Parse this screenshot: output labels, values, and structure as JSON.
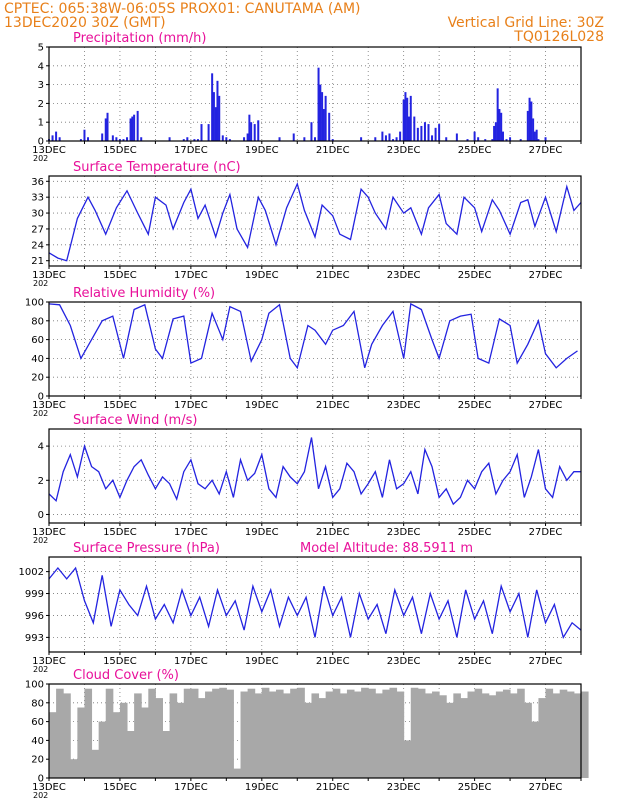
{
  "header": {
    "line1": "CPTEC:   065:38W-06:05S   PROX01: CANUTAMA (AM)",
    "line2_left": "13DEC2020 30Z (GMT)",
    "line2_right": "Vertical Grid Line: 30Z",
    "line3_right": "TQ0126L028"
  },
  "colors": {
    "header": "#e8801a",
    "title": "#e8109a",
    "series": "#2323e0",
    "cloud": "#a8a8a8"
  },
  "chart_data": [
    {
      "id": "precip",
      "type": "bar",
      "title": "Precipitation (mm/h)",
      "ylim": [
        0,
        5
      ],
      "yticks": [
        0,
        1,
        2,
        3,
        4,
        5
      ],
      "x_tick_labels": [
        "13DEC",
        "15DEC",
        "17DEC",
        "19DEC",
        "21DEC",
        "23DEC",
        "25DEC",
        "27DEC"
      ],
      "x_sub_label": "202",
      "days": [
        13.0,
        13.1,
        13.2,
        13.3,
        13.9,
        14.0,
        14.1,
        14.5,
        14.6,
        14.65,
        14.8,
        14.9,
        15.0,
        15.1,
        15.2,
        15.3,
        15.35,
        15.4,
        15.5,
        15.6,
        16.4,
        16.8,
        16.9,
        17.1,
        17.2,
        17.3,
        17.5,
        17.6,
        17.65,
        17.7,
        17.75,
        17.8,
        17.9,
        18.0,
        18.1,
        18.5,
        18.6,
        18.65,
        18.7,
        18.8,
        18.9,
        19.5,
        19.9,
        20.2,
        20.4,
        20.5,
        20.6,
        20.65,
        20.7,
        20.75,
        20.8,
        20.9,
        21.0,
        21.8,
        22.2,
        22.4,
        22.5,
        22.6,
        22.7,
        22.8,
        22.9,
        23.0,
        23.05,
        23.1,
        23.15,
        23.2,
        23.3,
        23.4,
        23.5,
        23.6,
        23.7,
        23.8,
        23.9,
        24.0,
        24.2,
        24.5,
        24.8,
        25.0,
        25.1,
        25.3,
        25.5,
        25.55,
        25.6,
        25.65,
        25.7,
        25.75,
        25.8,
        25.9,
        26.0,
        26.3,
        26.5,
        26.55,
        26.6,
        26.65,
        26.7,
        26.75,
        26.8,
        27.0
      ],
      "values": [
        0.1,
        0.3,
        0.5,
        0.2,
        0.1,
        0.6,
        0.2,
        0.4,
        1.2,
        1.5,
        0.3,
        0.2,
        0.1,
        0.1,
        0.2,
        1.2,
        1.3,
        1.4,
        1.6,
        0.2,
        0.2,
        0.1,
        0.2,
        0.1,
        0.1,
        0.9,
        0.9,
        3.6,
        2.6,
        1.8,
        3.2,
        2.4,
        0.3,
        0.2,
        0.1,
        0.2,
        0.4,
        1.4,
        1.0,
        0.9,
        1.1,
        0.2,
        0.4,
        0.2,
        1.0,
        0.2,
        3.9,
        3.0,
        2.6,
        1.7,
        2.4,
        1.5,
        0.1,
        0.2,
        0.2,
        0.5,
        0.3,
        0.4,
        0.1,
        0.2,
        0.5,
        2.2,
        2.6,
        2.3,
        1.3,
        2.4,
        1.3,
        0.7,
        0.8,
        1.0,
        0.9,
        0.3,
        0.7,
        0.9,
        0.2,
        0.4,
        0.1,
        0.5,
        0.2,
        0.1,
        0.1,
        0.8,
        1.0,
        2.8,
        1.7,
        1.5,
        0.5,
        0.1,
        0.2,
        0.1,
        1.6,
        2.3,
        2.1,
        1.2,
        0.5,
        0.6,
        0.1,
        0.2
      ]
    },
    {
      "id": "temp",
      "type": "line",
      "title": "Surface Temperature (nC)",
      "ylim": [
        20,
        37
      ],
      "yticks": [
        21,
        24,
        27,
        30,
        33,
        36
      ],
      "x_tick_labels": [
        "13DEC",
        "15DEC",
        "17DEC",
        "19DEC",
        "21DEC",
        "23DEC",
        "25DEC",
        "27DEC"
      ],
      "x_sub_label": "202",
      "x": [
        13.0,
        13.25,
        13.5,
        13.8,
        14.1,
        14.3,
        14.6,
        14.9,
        15.2,
        15.5,
        15.8,
        16.0,
        16.3,
        16.5,
        16.8,
        17.0,
        17.2,
        17.4,
        17.7,
        17.9,
        18.1,
        18.3,
        18.6,
        18.9,
        19.1,
        19.4,
        19.7,
        20.0,
        20.2,
        20.5,
        20.7,
        21.0,
        21.2,
        21.5,
        21.8,
        22.0,
        22.2,
        22.5,
        22.7,
        23.0,
        23.2,
        23.5,
        23.7,
        24.0,
        24.2,
        24.5,
        24.7,
        25.0,
        25.2,
        25.5,
        25.7,
        26.0,
        26.3,
        26.5,
        26.7,
        27.0,
        27.3,
        27.6,
        27.8,
        28.0
      ],
      "values": [
        22.5,
        21.5,
        21.0,
        29.0,
        33.0,
        30.5,
        26.0,
        31.0,
        34.2,
        30.0,
        26.0,
        33.0,
        31.5,
        27.0,
        32.0,
        34.5,
        29.0,
        31.5,
        25.5,
        30.0,
        33.5,
        27.0,
        23.5,
        33.0,
        30.5,
        24.0,
        31.0,
        35.5,
        30.5,
        25.5,
        31.5,
        29.5,
        26.0,
        25.0,
        34.5,
        33.0,
        30.0,
        27.0,
        33.0,
        30.0,
        31.0,
        26.0,
        31.0,
        33.5,
        28.0,
        26.0,
        33.0,
        31.0,
        26.5,
        32.5,
        30.5,
        26.0,
        32.0,
        32.5,
        27.5,
        33.0,
        26.5,
        35.0,
        30.5,
        32.0
      ]
    },
    {
      "id": "rh",
      "type": "line",
      "title": "Relative Humidity (%)",
      "ylim": [
        0,
        100
      ],
      "yticks": [
        0,
        20,
        40,
        60,
        80,
        100
      ],
      "x_tick_labels": [
        "13DEC",
        "15DEC",
        "17DEC",
        "19DEC",
        "21DEC",
        "23DEC",
        "25DEC",
        "27DEC"
      ],
      "x_sub_label": "202",
      "x": [
        13.0,
        13.3,
        13.6,
        13.9,
        14.2,
        14.5,
        14.8,
        15.1,
        15.4,
        15.7,
        16.0,
        16.2,
        16.5,
        16.8,
        17.0,
        17.3,
        17.6,
        17.9,
        18.1,
        18.4,
        18.7,
        19.0,
        19.2,
        19.5,
        19.8,
        20.0,
        20.3,
        20.5,
        20.8,
        21.0,
        21.3,
        21.6,
        21.9,
        22.1,
        22.4,
        22.7,
        23.0,
        23.2,
        23.5,
        23.8,
        24.0,
        24.3,
        24.6,
        24.9,
        25.1,
        25.4,
        25.7,
        26.0,
        26.2,
        26.5,
        26.8,
        27.0,
        27.3,
        27.6,
        27.9
      ],
      "values": [
        98.0,
        97.0,
        75.0,
        40.0,
        60.0,
        80.0,
        85.0,
        40.0,
        92.0,
        97.0,
        50.0,
        40.0,
        82.0,
        85.0,
        35.0,
        40.0,
        88.0,
        60.0,
        95.0,
        90.0,
        37.0,
        60.0,
        88.0,
        97.0,
        40.0,
        30.0,
        75.0,
        70.0,
        55.0,
        70.0,
        75.0,
        90.0,
        30.0,
        55.0,
        75.0,
        90.0,
        40.0,
        98.0,
        92.0,
        60.0,
        40.0,
        80.0,
        85.0,
        87.0,
        40.0,
        35.0,
        82.0,
        75.0,
        35.0,
        55.0,
        80.0,
        45.0,
        30.0,
        40.0,
        48.0
      ]
    },
    {
      "id": "wind",
      "type": "line",
      "title": "Surface Wind (m/s)",
      "ylim": [
        -0.5,
        5
      ],
      "yticks": [
        0,
        2,
        4
      ],
      "x_tick_labels": [
        "13DEC",
        "15DEC",
        "17DEC",
        "19DEC",
        "21DEC",
        "23DEC",
        "25DEC",
        "27DEC"
      ],
      "x_sub_label": "202",
      "x": [
        13.0,
        13.2,
        13.4,
        13.6,
        13.8,
        14.0,
        14.2,
        14.4,
        14.6,
        14.8,
        15.0,
        15.2,
        15.4,
        15.6,
        15.8,
        16.0,
        16.2,
        16.4,
        16.6,
        16.8,
        17.0,
        17.2,
        17.4,
        17.6,
        17.8,
        18.0,
        18.2,
        18.4,
        18.6,
        18.8,
        19.0,
        19.2,
        19.4,
        19.6,
        19.8,
        20.0,
        20.2,
        20.4,
        20.6,
        20.8,
        21.0,
        21.2,
        21.4,
        21.6,
        21.8,
        22.0,
        22.2,
        22.4,
        22.6,
        22.8,
        23.0,
        23.2,
        23.4,
        23.6,
        23.8,
        24.0,
        24.2,
        24.4,
        24.6,
        24.8,
        25.0,
        25.2,
        25.4,
        25.6,
        25.8,
        26.0,
        26.2,
        26.4,
        26.6,
        26.8,
        27.0,
        27.2,
        27.4,
        27.6,
        27.8,
        28.0
      ],
      "values": [
        1.2,
        0.8,
        2.5,
        3.5,
        2.2,
        4.0,
        2.8,
        2.5,
        1.5,
        2.0,
        1.0,
        2.0,
        2.8,
        3.2,
        2.3,
        1.5,
        2.2,
        1.8,
        0.9,
        2.5,
        3.2,
        1.8,
        1.5,
        2.0,
        1.2,
        2.5,
        1.0,
        3.2,
        2.0,
        2.4,
        3.5,
        1.5,
        1.0,
        2.8,
        2.2,
        1.8,
        2.5,
        4.5,
        1.5,
        2.8,
        1.0,
        1.5,
        3.0,
        2.5,
        1.2,
        1.8,
        2.5,
        1.0,
        3.2,
        1.5,
        1.8,
        2.5,
        1.2,
        3.8,
        2.8,
        1.0,
        1.5,
        0.6,
        1.0,
        2.0,
        1.5,
        2.5,
        3.0,
        1.2,
        2.0,
        2.5,
        3.5,
        1.0,
        2.2,
        3.8,
        1.5,
        1.0,
        2.8,
        2.0,
        2.5,
        2.5
      ]
    },
    {
      "id": "pres",
      "type": "line",
      "title": "Surface Pressure (hPa)",
      "annotation": "Model Altitude: 88.5911 m",
      "ylim": [
        991,
        1004
      ],
      "yticks": [
        993,
        996,
        999,
        1002
      ],
      "x_tick_labels": [
        "13DEC",
        "15DEC",
        "17DEC",
        "19DEC",
        "21DEC",
        "23DEC",
        "25DEC",
        "27DEC"
      ],
      "x_sub_label": "202",
      "x": [
        13.0,
        13.25,
        13.5,
        13.75,
        14.0,
        14.25,
        14.5,
        14.75,
        15.0,
        15.25,
        15.5,
        15.75,
        16.0,
        16.25,
        16.5,
        16.75,
        17.0,
        17.25,
        17.5,
        17.75,
        18.0,
        18.25,
        18.5,
        18.75,
        19.0,
        19.25,
        19.5,
        19.75,
        20.0,
        20.25,
        20.5,
        20.75,
        21.0,
        21.25,
        21.5,
        21.75,
        22.0,
        22.25,
        22.5,
        22.75,
        23.0,
        23.25,
        23.5,
        23.75,
        24.0,
        24.25,
        24.5,
        24.75,
        25.0,
        25.25,
        25.5,
        25.75,
        26.0,
        26.25,
        26.5,
        26.75,
        27.0,
        27.25,
        27.5,
        27.75,
        28.0
      ],
      "values": [
        1001.0,
        1002.5,
        1001.0,
        1002.5,
        998.0,
        995.0,
        1001.5,
        994.5,
        999.5,
        997.5,
        996.0,
        1000.0,
        995.5,
        997.5,
        995.0,
        999.5,
        996.0,
        998.5,
        994.5,
        999.5,
        996.0,
        998.0,
        994.0,
        1000.0,
        996.5,
        999.5,
        994.5,
        998.5,
        996.0,
        998.5,
        993.0,
        1000.0,
        996.0,
        998.5,
        993.0,
        999.0,
        995.5,
        997.5,
        993.5,
        999.5,
        996.0,
        998.5,
        993.5,
        999.0,
        995.5,
        998.0,
        993.0,
        999.5,
        995.5,
        998.0,
        993.5,
        1000.0,
        996.5,
        999.0,
        993.0,
        999.5,
        995.0,
        997.5,
        993.0,
        995.0,
        994.0
      ]
    },
    {
      "id": "cloud",
      "type": "area",
      "title": "Cloud Cover (%)",
      "ylim": [
        0,
        100
      ],
      "yticks": [
        0,
        20,
        40,
        60,
        80,
        100
      ],
      "x_tick_labels": [
        "13DEC",
        "15DEC",
        "17DEC",
        "19DEC",
        "21DEC",
        "23DEC",
        "25DEC",
        "27DEC"
      ],
      "x_sub_label": "202",
      "x": [
        13.0,
        13.2,
        13.4,
        13.6,
        13.8,
        14.0,
        14.2,
        14.4,
        14.6,
        14.8,
        15.0,
        15.2,
        15.4,
        15.6,
        15.8,
        16.0,
        16.2,
        16.4,
        16.6,
        16.8,
        17.0,
        17.2,
        17.4,
        17.6,
        17.8,
        18.0,
        18.2,
        18.4,
        18.6,
        18.8,
        19.0,
        19.2,
        19.4,
        19.6,
        19.8,
        20.0,
        20.2,
        20.4,
        20.6,
        20.8,
        21.0,
        21.2,
        21.4,
        21.6,
        21.8,
        22.0,
        22.2,
        22.4,
        22.6,
        22.8,
        23.0,
        23.2,
        23.4,
        23.6,
        23.8,
        24.0,
        24.2,
        24.4,
        24.6,
        24.8,
        25.0,
        25.2,
        25.4,
        25.6,
        25.8,
        26.0,
        26.2,
        26.4,
        26.6,
        26.8,
        27.0,
        27.2,
        27.4,
        27.6,
        27.8,
        28.0
      ],
      "values": [
        70.0,
        95.0,
        90.0,
        20.0,
        75.0,
        95.0,
        30.0,
        60.0,
        95.0,
        70.0,
        80.0,
        50.0,
        90.0,
        75.0,
        95.0,
        85.0,
        50.0,
        90.0,
        80.0,
        95.0,
        95.0,
        85.0,
        92.0,
        95.0,
        96.0,
        94.0,
        10.0,
        92.0,
        95.0,
        90.0,
        96.0,
        92.0,
        94.0,
        90.0,
        95.0,
        96.0,
        80.0,
        90.0,
        85.0,
        92.0,
        95.0,
        90.0,
        94.0,
        92.0,
        96.0,
        95.0,
        90.0,
        94.0,
        96.0,
        92.0,
        40.0,
        96.0,
        95.0,
        90.0,
        92.0,
        88.0,
        80.0,
        90.0,
        85.0,
        92.0,
        95.0,
        90.0,
        88.0,
        92.0,
        94.0,
        90.0,
        95.0,
        80.0,
        60.0,
        85.0,
        95.0,
        90.0,
        94.0,
        92.0,
        90.0,
        92.0
      ]
    }
  ]
}
